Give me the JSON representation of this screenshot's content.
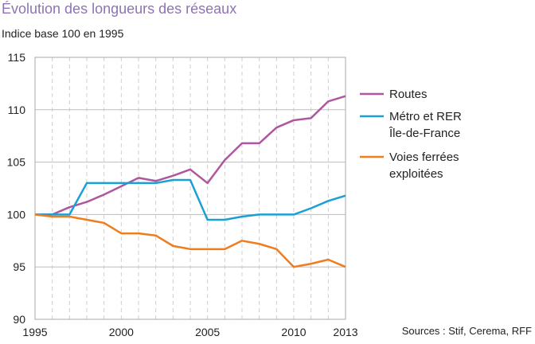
{
  "header": {
    "title": "Évolution des longueurs des réseaux",
    "subtitle": "Indice base 100 en 1995"
  },
  "source": "Sources : Stif, Cerema, RFF",
  "chart_data": {
    "type": "line",
    "title": "Évolution des longueurs des réseaux",
    "subtitle": "Indice base 100 en 1995",
    "xlim": [
      1995,
      2013
    ],
    "ylim": [
      90,
      115
    ],
    "x_ticks": [
      "1995",
      "2000",
      "2005",
      "2010",
      "2013"
    ],
    "x_tick_values": [
      1995,
      2000,
      2005,
      2010,
      2013
    ],
    "y_ticks": [
      "90",
      "95",
      "100",
      "105",
      "110",
      "115"
    ],
    "y_tick_values": [
      90,
      95,
      100,
      105,
      110,
      115
    ],
    "grid": "vertical dashed (yearly), horizontal solid",
    "legend_position": "right",
    "x": [
      1995,
      1996,
      1997,
      1998,
      1999,
      2000,
      2001,
      2002,
      2003,
      2004,
      2005,
      2006,
      2007,
      2008,
      2009,
      2010,
      2011,
      2012,
      2013
    ],
    "series": [
      {
        "name": "Routes",
        "legend_lines": [
          "Routes"
        ],
        "color": "#b0569f",
        "values": [
          100,
          100,
          100.7,
          101.2,
          101.9,
          102.7,
          103.5,
          103.2,
          103.7,
          104.3,
          103,
          105.2,
          106.8,
          106.8,
          108.3,
          109,
          109.2,
          110.8,
          111.3
        ]
      },
      {
        "name": "Métro et RER Île-de-France",
        "legend_lines": [
          "Métro et RER",
          "Île-de-France"
        ],
        "color": "#1aa0d6",
        "values": [
          100,
          100,
          100,
          103,
          103,
          103,
          103,
          103,
          103.3,
          103.3,
          99.5,
          99.5,
          99.8,
          100,
          100,
          100,
          100.6,
          101.3,
          101.8
        ]
      },
      {
        "name": "Voies ferrées exploitées",
        "legend_lines": [
          "Voies ferrées",
          "exploitées"
        ],
        "color": "#ef7d1d",
        "values": [
          100,
          99.8,
          99.8,
          99.5,
          99.2,
          98.2,
          98.2,
          98,
          97,
          96.7,
          96.7,
          96.7,
          97.5,
          97.2,
          96.7,
          95,
          95.3,
          95.7,
          95
        ]
      }
    ]
  }
}
